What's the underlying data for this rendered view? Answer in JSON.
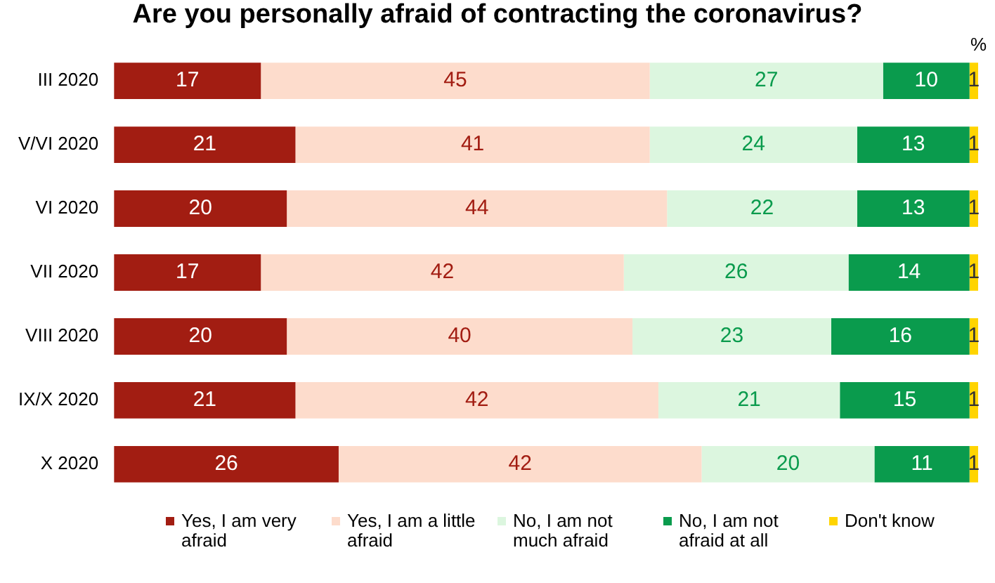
{
  "chart_data": {
    "type": "bar",
    "orientation": "horizontal",
    "stacked": true,
    "title": "Are you personally afraid of contracting the coronavirus?",
    "categories": [
      "III 2020",
      "V/VI 2020",
      "VI 2020",
      "VII 2020",
      "VIII 2020",
      "IX/X 2020",
      "X 2020"
    ],
    "series": [
      {
        "name": "Yes, I am very afraid",
        "color": "#a21d12",
        "values": [
          17,
          21,
          20,
          17,
          20,
          21,
          26
        ]
      },
      {
        "name": "Yes, I am a little afraid",
        "color": "#fddccc",
        "values": [
          45,
          41,
          44,
          42,
          40,
          42,
          42
        ]
      },
      {
        "name": "No, I am not much afraid",
        "color": "#dcf6df",
        "values": [
          27,
          24,
          22,
          26,
          23,
          21,
          20
        ]
      },
      {
        "name": "No, I am not afraid at all",
        "color": "#0a9b4d",
        "values": [
          10,
          13,
          13,
          14,
          16,
          15,
          11
        ]
      },
      {
        "name": "Don't know",
        "color": "#ffd400",
        "values": [
          1,
          1,
          1,
          1,
          1,
          1,
          1
        ]
      }
    ],
    "tick_labels": "y",
    "data_labels": true,
    "legend": "bottom",
    "annotations": [
      "%"
    ]
  }
}
